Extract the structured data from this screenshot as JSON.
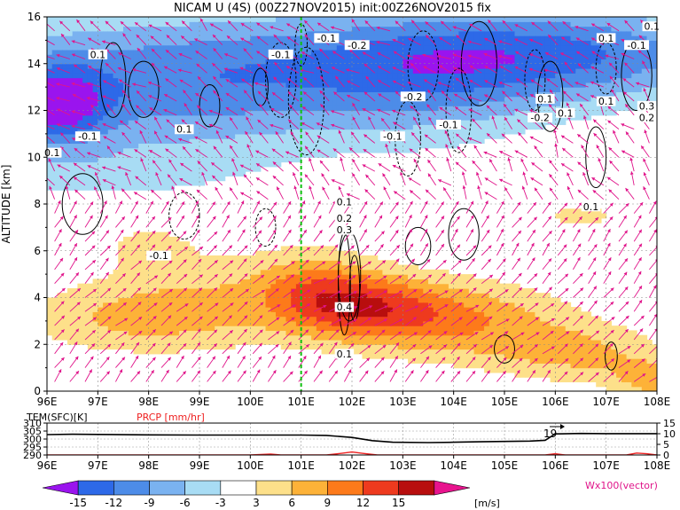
{
  "title": "NICAM U (4S) (00Z27NOV2015) init:00Z26NOV2015 fix",
  "colors": {
    "band_colors": [
      "#9a14ee",
      "#2d69e8",
      "#4d8ce8",
      "#7ab2f0",
      "#a8dcf4",
      "#ffffff",
      "#fde08a",
      "#fdb238",
      "#fd7a1a",
      "#ee3a1e",
      "#b80e0e",
      "#e8148e"
    ],
    "vector": "#e0148a",
    "contour": "#000000",
    "marker_line": "#10c010",
    "temp_line": "#000000",
    "prcp_line": "#ee2020"
  },
  "chart_data": [
    {
      "type": "heatmap",
      "title": "NICAM U (4S) (00Z27NOV2015) init:00Z26NOV2015 fix",
      "xlabel": "",
      "ylabel": "ALTITUDE [km]",
      "x_ticks": [
        "96E",
        "97E",
        "98E",
        "99E",
        "100E",
        "101E",
        "102E",
        "103E",
        "104E",
        "105E",
        "106E",
        "107E",
        "108E"
      ],
      "y_ticks": [
        "0",
        "2",
        "4",
        "6",
        "8",
        "10",
        "12",
        "14",
        "16"
      ],
      "xlim": [
        96,
        108
      ],
      "ylim": [
        0,
        16
      ],
      "grid": true,
      "marker_line_lon": 101,
      "contour_labels": [
        {
          "text": "0.1",
          "lon": 97.0,
          "alt": 14.3
        },
        {
          "text": "-0.1",
          "lon": 96.8,
          "alt": 10.8
        },
        {
          "text": "0.1",
          "lon": 96.1,
          "alt": 10.1
        },
        {
          "text": "0.1",
          "lon": 98.7,
          "alt": 11.1
        },
        {
          "text": "-0.1",
          "lon": 100.6,
          "alt": 14.3
        },
        {
          "text": "-0.1",
          "lon": 101.5,
          "alt": 15.0
        },
        {
          "text": "-0.2",
          "lon": 102.1,
          "alt": 14.7
        },
        {
          "text": "-0.2",
          "lon": 103.2,
          "alt": 12.5
        },
        {
          "text": "-0.1",
          "lon": 102.8,
          "alt": 10.8
        },
        {
          "text": "-0.1",
          "lon": 103.9,
          "alt": 11.3
        },
        {
          "text": "0.1",
          "lon": 105.8,
          "alt": 12.4
        },
        {
          "text": "-0.2",
          "lon": 105.7,
          "alt": 11.6
        },
        {
          "text": "0.1",
          "lon": 106.2,
          "alt": 11.8
        },
        {
          "text": "0.1",
          "lon": 107.0,
          "alt": 12.3
        },
        {
          "text": "-0.1",
          "lon": 107.6,
          "alt": 14.7
        },
        {
          "text": "0.1",
          "lon": 107.0,
          "alt": 15.0
        },
        {
          "text": "0.1",
          "lon": 107.9,
          "alt": 15.5
        },
        {
          "text": "0.3",
          "lon": 107.8,
          "alt": 12.1
        },
        {
          "text": "0.2",
          "lon": 107.8,
          "alt": 11.6
        },
        {
          "text": "0.1",
          "lon": 106.7,
          "alt": 7.8
        },
        {
          "text": "-0.1",
          "lon": 98.2,
          "alt": 5.7
        },
        {
          "text": "0.1",
          "lon": 101.85,
          "alt": 8.0
        },
        {
          "text": "0.2",
          "lon": 101.85,
          "alt": 7.3
        },
        {
          "text": "0.3",
          "lon": 101.85,
          "alt": 6.8
        },
        {
          "text": "0.4",
          "lon": 101.85,
          "alt": 3.5
        },
        {
          "text": "0.1",
          "lon": 101.85,
          "alt": 1.5
        }
      ]
    },
    {
      "type": "line",
      "xlim": [
        96,
        108
      ],
      "x_ticks": [
        "96E",
        "97E",
        "98E",
        "99E",
        "100E",
        "101E",
        "102E",
        "103E",
        "104E",
        "105E",
        "106E",
        "107E",
        "108E"
      ],
      "left_axis_label": "TEM(SFC)[K]",
      "right_axis_label": "PRCP [mm/hr]",
      "left_ticks": [
        "310",
        "305",
        "300",
        "295",
        "290"
      ],
      "left_ylim": [
        290,
        310
      ],
      "right_ticks": [
        "15",
        "10",
        "5",
        "0"
      ],
      "right_ylim": [
        0,
        15
      ],
      "annotation": "19",
      "series": [
        {
          "name": "TEM(SFC)[K]",
          "x": [
            96,
            96.5,
            97,
            98,
            99,
            100,
            101,
            101.5,
            102,
            102.4,
            102.8,
            103.5,
            104,
            104.5,
            105,
            105.5,
            105.8,
            106,
            106.5,
            107,
            108
          ],
          "values": [
            302.8,
            303.0,
            302.9,
            302.6,
            302.5,
            302.5,
            302.5,
            302.3,
            301.0,
            299.0,
            298.0,
            297.8,
            298.0,
            298.3,
            298.5,
            298.7,
            299.2,
            303.2,
            303.5,
            303.4,
            303.4
          ]
        },
        {
          "name": "PRCP [mm/hr]",
          "x": [
            96,
            100,
            100.4,
            100.6,
            101.5,
            101.8,
            102.0,
            102.2,
            102.5,
            105.8,
            106.0,
            106.2,
            107.4,
            107.6,
            107.8,
            108
          ],
          "values": [
            0,
            0,
            0.4,
            0,
            0,
            0.8,
            1.4,
            0.8,
            0,
            0,
            0.6,
            0,
            0,
            0.9,
            0.6,
            0
          ]
        }
      ]
    }
  ],
  "colorbar": {
    "labels": [
      "-15",
      "-12",
      "-9",
      "-6",
      "-3",
      "3",
      "6",
      "9",
      "12",
      "15"
    ],
    "unit_label": "[m/s]",
    "vector_label": "Wx100(vector)"
  }
}
